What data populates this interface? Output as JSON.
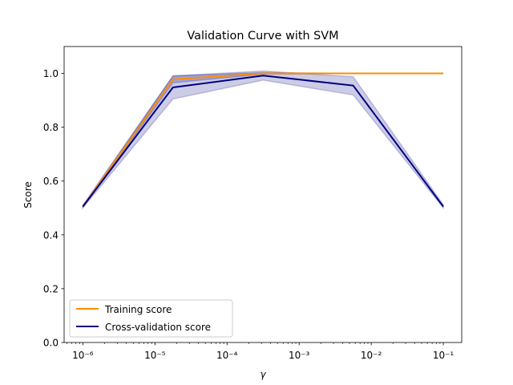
{
  "chart_data": {
    "type": "line",
    "title": "Validation Curve with SVM",
    "xlabel": "γ",
    "ylabel": "Score",
    "xscale": "log",
    "xlim": [
      5.5e-07,
      0.18
    ],
    "ylim": [
      0.0,
      1.1
    ],
    "x": [
      1e-06,
      1.778e-05,
      0.0003162,
      0.005623,
      0.1
    ],
    "series": [
      {
        "name": "Training score",
        "color": "#ff8c00",
        "values": [
          0.505,
          0.978,
          1.0,
          1.0,
          1.0
        ],
        "band_lower": [
          0.503,
          0.965,
          0.997,
          1.0,
          1.0
        ],
        "band_upper": [
          0.508,
          0.991,
          1.003,
          1.0,
          1.0
        ]
      },
      {
        "name": "Cross-validation score",
        "color": "#000080",
        "values": [
          0.505,
          0.948,
          0.992,
          0.955,
          0.505
        ],
        "band_lower": [
          0.5,
          0.905,
          0.975,
          0.92,
          0.5
        ],
        "band_upper": [
          0.51,
          0.991,
          1.009,
          0.988,
          0.512
        ]
      }
    ],
    "band_color": "#000080",
    "x_ticks": [
      {
        "value": 1e-06,
        "label": "10⁻⁶"
      },
      {
        "value": 1e-05,
        "label": "10⁻⁵"
      },
      {
        "value": 0.0001,
        "label": "10⁻⁴"
      },
      {
        "value": 0.001,
        "label": "10⁻³"
      },
      {
        "value": 0.01,
        "label": "10⁻²"
      },
      {
        "value": 0.1,
        "label": "10⁻¹"
      }
    ],
    "y_ticks": [
      0.0,
      0.2,
      0.4,
      0.6,
      0.8,
      1.0
    ],
    "y_tick_labels": [
      "0.0",
      "0.2",
      "0.4",
      "0.6",
      "0.8",
      "1.0"
    ],
    "legend_position": "lower-left",
    "grid": false
  }
}
